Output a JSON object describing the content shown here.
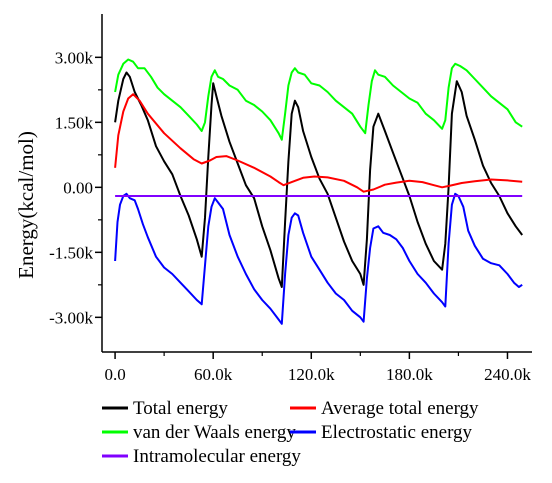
{
  "chart_data": {
    "type": "line",
    "title": "",
    "xlabel": "",
    "ylabel": "Energy(kcal/mol)",
    "xlim": [
      -8000,
      255000
    ],
    "ylim": [
      -3800,
      4000
    ],
    "x_ticks": [
      0,
      60000,
      120000,
      180000,
      240000
    ],
    "x_tick_labels": [
      "0.0",
      "60.0k",
      "120.0k",
      "180.0k",
      "240.0k"
    ],
    "y_ticks": [
      3000,
      1500,
      0,
      -1500,
      -3000
    ],
    "y_tick_labels": [
      "3.00k",
      "1.50k",
      "0.00",
      "-1.50k",
      "-3.00k"
    ],
    "grid": false,
    "legend_position": "bottom",
    "series": [
      {
        "name": "Total energy",
        "color": "#000000",
        "points": [
          [
            0,
            1500
          ],
          [
            2000,
            2000
          ],
          [
            5000,
            2500
          ],
          [
            7000,
            2650
          ],
          [
            9000,
            2550
          ],
          [
            12000,
            2200
          ],
          [
            16000,
            1900
          ],
          [
            20000,
            1550
          ],
          [
            25000,
            950
          ],
          [
            30000,
            600
          ],
          [
            35000,
            300
          ],
          [
            40000,
            -200
          ],
          [
            45000,
            -650
          ],
          [
            50000,
            -1200
          ],
          [
            53000,
            -1600
          ],
          [
            55000,
            -700
          ],
          [
            57000,
            700
          ],
          [
            59000,
            1900
          ],
          [
            60000,
            2400
          ],
          [
            62000,
            2100
          ],
          [
            65000,
            1650
          ],
          [
            70000,
            1050
          ],
          [
            75000,
            550
          ],
          [
            80000,
            50
          ],
          [
            85000,
            -250
          ],
          [
            90000,
            -900
          ],
          [
            95000,
            -1450
          ],
          [
            100000,
            -2100
          ],
          [
            102000,
            -2300
          ],
          [
            104000,
            -800
          ],
          [
            106000,
            600
          ],
          [
            108000,
            1700
          ],
          [
            110000,
            2000
          ],
          [
            112000,
            1850
          ],
          [
            115000,
            1300
          ],
          [
            120000,
            700
          ],
          [
            125000,
            200
          ],
          [
            130000,
            -150
          ],
          [
            135000,
            -700
          ],
          [
            140000,
            -1250
          ],
          [
            145000,
            -1700
          ],
          [
            150000,
            -2000
          ],
          [
            152000,
            -2250
          ],
          [
            154000,
            -1200
          ],
          [
            156000,
            400
          ],
          [
            158000,
            1400
          ],
          [
            161000,
            1700
          ],
          [
            165000,
            1300
          ],
          [
            170000,
            800
          ],
          [
            175000,
            300
          ],
          [
            180000,
            -200
          ],
          [
            185000,
            -800
          ],
          [
            190000,
            -1300
          ],
          [
            195000,
            -1700
          ],
          [
            200000,
            -1900
          ],
          [
            202000,
            -1300
          ],
          [
            204000,
            0
          ],
          [
            206000,
            1700
          ],
          [
            209000,
            2450
          ],
          [
            212000,
            2200
          ],
          [
            215000,
            1650
          ],
          [
            220000,
            1100
          ],
          [
            225000,
            500
          ],
          [
            230000,
            100
          ],
          [
            235000,
            -200
          ],
          [
            240000,
            -600
          ],
          [
            245000,
            -900
          ],
          [
            249000,
            -1100
          ]
        ]
      },
      {
        "name": "Average total energy",
        "color": "#ff0000",
        "points": [
          [
            0,
            450
          ],
          [
            2000,
            1200
          ],
          [
            5000,
            1750
          ],
          [
            8000,
            2050
          ],
          [
            11000,
            2150
          ],
          [
            15000,
            2000
          ],
          [
            20000,
            1700
          ],
          [
            30000,
            1250
          ],
          [
            40000,
            900
          ],
          [
            48000,
            650
          ],
          [
            53000,
            550
          ],
          [
            58000,
            620
          ],
          [
            62000,
            700
          ],
          [
            68000,
            720
          ],
          [
            75000,
            620
          ],
          [
            85000,
            450
          ],
          [
            95000,
            250
          ],
          [
            100000,
            120
          ],
          [
            103000,
            50
          ],
          [
            108000,
            120
          ],
          [
            115000,
            220
          ],
          [
            122000,
            250
          ],
          [
            130000,
            230
          ],
          [
            140000,
            150
          ],
          [
            148000,
            0
          ],
          [
            152000,
            -100
          ],
          [
            158000,
            -50
          ],
          [
            165000,
            60
          ],
          [
            172000,
            110
          ],
          [
            180000,
            150
          ],
          [
            188000,
            120
          ],
          [
            195000,
            50
          ],
          [
            200000,
            0
          ],
          [
            205000,
            40
          ],
          [
            212000,
            100
          ],
          [
            220000,
            140
          ],
          [
            230000,
            180
          ],
          [
            240000,
            160
          ],
          [
            249000,
            130
          ]
        ]
      },
      {
        "name": "van der Waals energy",
        "color": "#00ff00",
        "points": [
          [
            0,
            2200
          ],
          [
            2000,
            2600
          ],
          [
            5000,
            2850
          ],
          [
            8000,
            2950
          ],
          [
            11000,
            2900
          ],
          [
            14000,
            2750
          ],
          [
            18000,
            2750
          ],
          [
            22000,
            2550
          ],
          [
            26000,
            2300
          ],
          [
            30000,
            2150
          ],
          [
            35000,
            2000
          ],
          [
            40000,
            1850
          ],
          [
            45000,
            1650
          ],
          [
            50000,
            1450
          ],
          [
            53000,
            1300
          ],
          [
            55000,
            1500
          ],
          [
            57000,
            2100
          ],
          [
            59000,
            2550
          ],
          [
            61000,
            2700
          ],
          [
            63000,
            2550
          ],
          [
            66000,
            2500
          ],
          [
            70000,
            2350
          ],
          [
            75000,
            2250
          ],
          [
            80000,
            2000
          ],
          [
            85000,
            1900
          ],
          [
            90000,
            1750
          ],
          [
            95000,
            1550
          ],
          [
            100000,
            1250
          ],
          [
            102000,
            1100
          ],
          [
            104000,
            1700
          ],
          [
            106000,
            2350
          ],
          [
            108000,
            2650
          ],
          [
            110000,
            2750
          ],
          [
            112000,
            2650
          ],
          [
            116000,
            2600
          ],
          [
            120000,
            2400
          ],
          [
            125000,
            2350
          ],
          [
            130000,
            2200
          ],
          [
            135000,
            2000
          ],
          [
            140000,
            1850
          ],
          [
            145000,
            1700
          ],
          [
            150000,
            1400
          ],
          [
            153000,
            1250
          ],
          [
            155000,
            1900
          ],
          [
            157000,
            2450
          ],
          [
            159000,
            2700
          ],
          [
            161000,
            2600
          ],
          [
            165000,
            2550
          ],
          [
            170000,
            2350
          ],
          [
            175000,
            2200
          ],
          [
            180000,
            2050
          ],
          [
            185000,
            1950
          ],
          [
            190000,
            1700
          ],
          [
            195000,
            1550
          ],
          [
            200000,
            1350
          ],
          [
            202000,
            1550
          ],
          [
            204000,
            2300
          ],
          [
            206000,
            2750
          ],
          [
            208000,
            2850
          ],
          [
            211000,
            2800
          ],
          [
            215000,
            2700
          ],
          [
            220000,
            2500
          ],
          [
            225000,
            2300
          ],
          [
            230000,
            2100
          ],
          [
            235000,
            1950
          ],
          [
            240000,
            1800
          ],
          [
            245000,
            1500
          ],
          [
            249000,
            1400
          ]
        ]
      },
      {
        "name": "Electrostatic energy",
        "color": "#0000ff",
        "points": [
          [
            0,
            -1700
          ],
          [
            1500,
            -800
          ],
          [
            3000,
            -400
          ],
          [
            5000,
            -200
          ],
          [
            7000,
            -150
          ],
          [
            9000,
            -250
          ],
          [
            12000,
            -300
          ],
          [
            14000,
            -500
          ],
          [
            17000,
            -850
          ],
          [
            20000,
            -1150
          ],
          [
            25000,
            -1600
          ],
          [
            30000,
            -1850
          ],
          [
            35000,
            -2000
          ],
          [
            40000,
            -2200
          ],
          [
            45000,
            -2400
          ],
          [
            50000,
            -2600
          ],
          [
            53000,
            -2700
          ],
          [
            55000,
            -1800
          ],
          [
            57000,
            -900
          ],
          [
            59000,
            -450
          ],
          [
            61000,
            -250
          ],
          [
            63000,
            -350
          ],
          [
            66000,
            -500
          ],
          [
            70000,
            -1100
          ],
          [
            75000,
            -1600
          ],
          [
            80000,
            -2000
          ],
          [
            85000,
            -2350
          ],
          [
            90000,
            -2600
          ],
          [
            95000,
            -2800
          ],
          [
            100000,
            -3050
          ],
          [
            102000,
            -3150
          ],
          [
            104000,
            -2000
          ],
          [
            106000,
            -1100
          ],
          [
            108000,
            -700
          ],
          [
            110000,
            -600
          ],
          [
            112000,
            -650
          ],
          [
            115000,
            -1050
          ],
          [
            120000,
            -1600
          ],
          [
            125000,
            -1900
          ],
          [
            130000,
            -2200
          ],
          [
            135000,
            -2450
          ],
          [
            140000,
            -2600
          ],
          [
            145000,
            -2850
          ],
          [
            150000,
            -3000
          ],
          [
            152000,
            -3100
          ],
          [
            154000,
            -2100
          ],
          [
            156000,
            -1400
          ],
          [
            158000,
            -950
          ],
          [
            161000,
            -900
          ],
          [
            164000,
            -1050
          ],
          [
            168000,
            -1100
          ],
          [
            172000,
            -1200
          ],
          [
            176000,
            -1400
          ],
          [
            180000,
            -1700
          ],
          [
            185000,
            -2000
          ],
          [
            190000,
            -2200
          ],
          [
            195000,
            -2450
          ],
          [
            200000,
            -2650
          ],
          [
            202000,
            -2750
          ],
          [
            204000,
            -1300
          ],
          [
            206000,
            -400
          ],
          [
            208000,
            -150
          ],
          [
            210000,
            -200
          ],
          [
            213000,
            -450
          ],
          [
            216000,
            -1000
          ],
          [
            220000,
            -1350
          ],
          [
            225000,
            -1650
          ],
          [
            230000,
            -1750
          ],
          [
            235000,
            -1800
          ],
          [
            240000,
            -2000
          ],
          [
            244000,
            -2200
          ],
          [
            247000,
            -2300
          ],
          [
            249000,
            -2250
          ]
        ]
      },
      {
        "name": "Intramolecular energy",
        "color": "#8000ff",
        "points": [
          [
            0,
            -200
          ],
          [
            249000,
            -200
          ]
        ]
      }
    ]
  }
}
